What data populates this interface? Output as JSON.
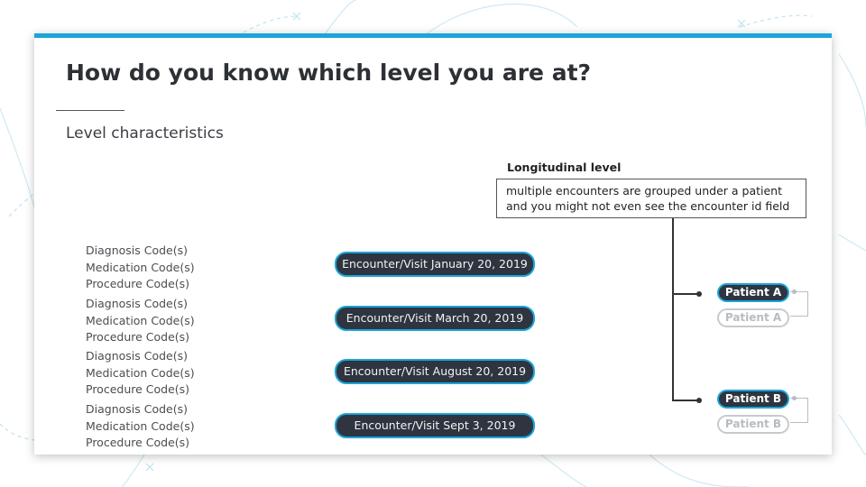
{
  "slide": {
    "title": "How do you know which level you are at?",
    "subtitle": "Level characteristics"
  },
  "code_groups": [
    [
      "Diagnosis Code(s)",
      "Medication Code(s)",
      "Procedure Code(s)"
    ],
    [
      "Diagnosis Code(s)",
      "Medication Code(s)",
      "Procedure Code(s)"
    ],
    [
      "Diagnosis Code(s)",
      "Medication Code(s)",
      "Procedure Code(s)"
    ],
    [
      "Diagnosis Code(s)",
      "Medication Code(s)",
      "Procedure Code(s)"
    ]
  ],
  "encounters": [
    "Encounter/Visit  January 20, 2019",
    "Encounter/Visit  March 20, 2019",
    "Encounter/Visit August  20, 2019",
    "Encounter/Visit  Sept 3, 2019"
  ],
  "longitudinal": {
    "label": "Longitudinal level",
    "description": "multiple encounters are grouped under a patient and you might not even see the encounter id field"
  },
  "patients": {
    "a": "Patient A",
    "a_ghost": "Patient A",
    "b": "Patient B",
    "b_ghost": "Patient B"
  },
  "colors": {
    "accent": "#1ba5d8",
    "pill_dark": "#2e3540",
    "title_text": "#2d3035",
    "ghost": "#c6cacf"
  }
}
